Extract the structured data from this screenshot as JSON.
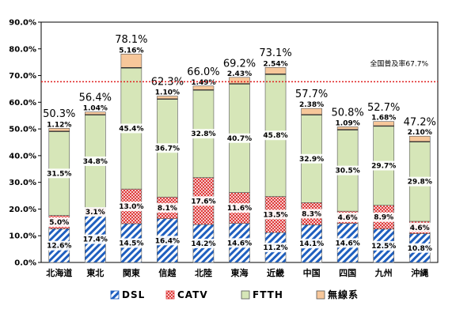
{
  "chart_data": {
    "type": "bar",
    "stacked": true,
    "categories": [
      "北海道",
      "東北",
      "関東",
      "信越",
      "北陸",
      "東海",
      "近畿",
      "中国",
      "四国",
      "九州",
      "沖縄"
    ],
    "series": [
      {
        "name": "DSL",
        "values": [
          12.6,
          17.4,
          14.5,
          16.4,
          14.2,
          14.6,
          11.2,
          14.1,
          14.6,
          12.5,
          10.8
        ],
        "labels": [
          "12.6%",
          "17.4%",
          "14.5%",
          "16.4%",
          "14.2%",
          "14.6%",
          "11.2%",
          "14.1%",
          "14.6%",
          "12.5%",
          "10.8%"
        ]
      },
      {
        "name": "CATV",
        "values": [
          5.0,
          3.1,
          13.0,
          8.1,
          17.6,
          11.6,
          13.5,
          8.3,
          4.6,
          8.9,
          4.6
        ],
        "labels": [
          "5.0%",
          "3.1%",
          "13.0%",
          "8.1%",
          "17.6%",
          "11.6%",
          "13.5%",
          "8.3%",
          "4.6%",
          "8.9%",
          "4.6%"
        ]
      },
      {
        "name": "FTTH",
        "values": [
          31.5,
          34.8,
          45.4,
          36.7,
          32.8,
          40.7,
          45.8,
          32.9,
          30.5,
          29.7,
          29.8
        ],
        "labels": [
          "31.5%",
          "34.8%",
          "45.4%",
          "36.7%",
          "32.8%",
          "40.7%",
          "45.8%",
          "32.9%",
          "30.5%",
          "29.7%",
          "29.8%"
        ]
      },
      {
        "name": "無線系",
        "values": [
          1.12,
          1.04,
          5.16,
          1.1,
          1.49,
          2.43,
          2.54,
          2.38,
          1.09,
          1.68,
          2.1
        ],
        "labels": [
          "1.12%",
          "1.04%",
          "5.16%",
          "1.10%",
          "1.49%",
          "2.43%",
          "2.54%",
          "2.38%",
          "1.09%",
          "1.68%",
          "2.10%"
        ]
      }
    ],
    "totals": [
      50.3,
      56.4,
      78.1,
      62.3,
      66.0,
      69.2,
      73.1,
      57.7,
      50.8,
      52.7,
      47.2
    ],
    "total_labels": [
      "50.3%",
      "56.4%",
      "78.1%",
      "62.3%",
      "66.0%",
      "69.2%",
      "73.1%",
      "57.7%",
      "50.8%",
      "52.7%",
      "47.2%"
    ],
    "highlight_total_index": 5,
    "yticks": [
      "0.0%",
      "10.0%",
      "20.0%",
      "30.0%",
      "40.0%",
      "50.0%",
      "60.0%",
      "70.0%",
      "80.0%",
      "90.0%"
    ],
    "ylim": [
      0,
      90
    ],
    "reference_line": {
      "value": 67.7,
      "label": "全国普及率67.7%"
    },
    "legend_position": "bottom",
    "grid": false,
    "colors": {
      "DSL": "#1f5fbf",
      "CATV": "#e03a3a",
      "FTTH": "#d6e6b8",
      "無線系": "#f7c79a",
      "reference": "#e02020",
      "highlight_total": "#e02020"
    }
  }
}
